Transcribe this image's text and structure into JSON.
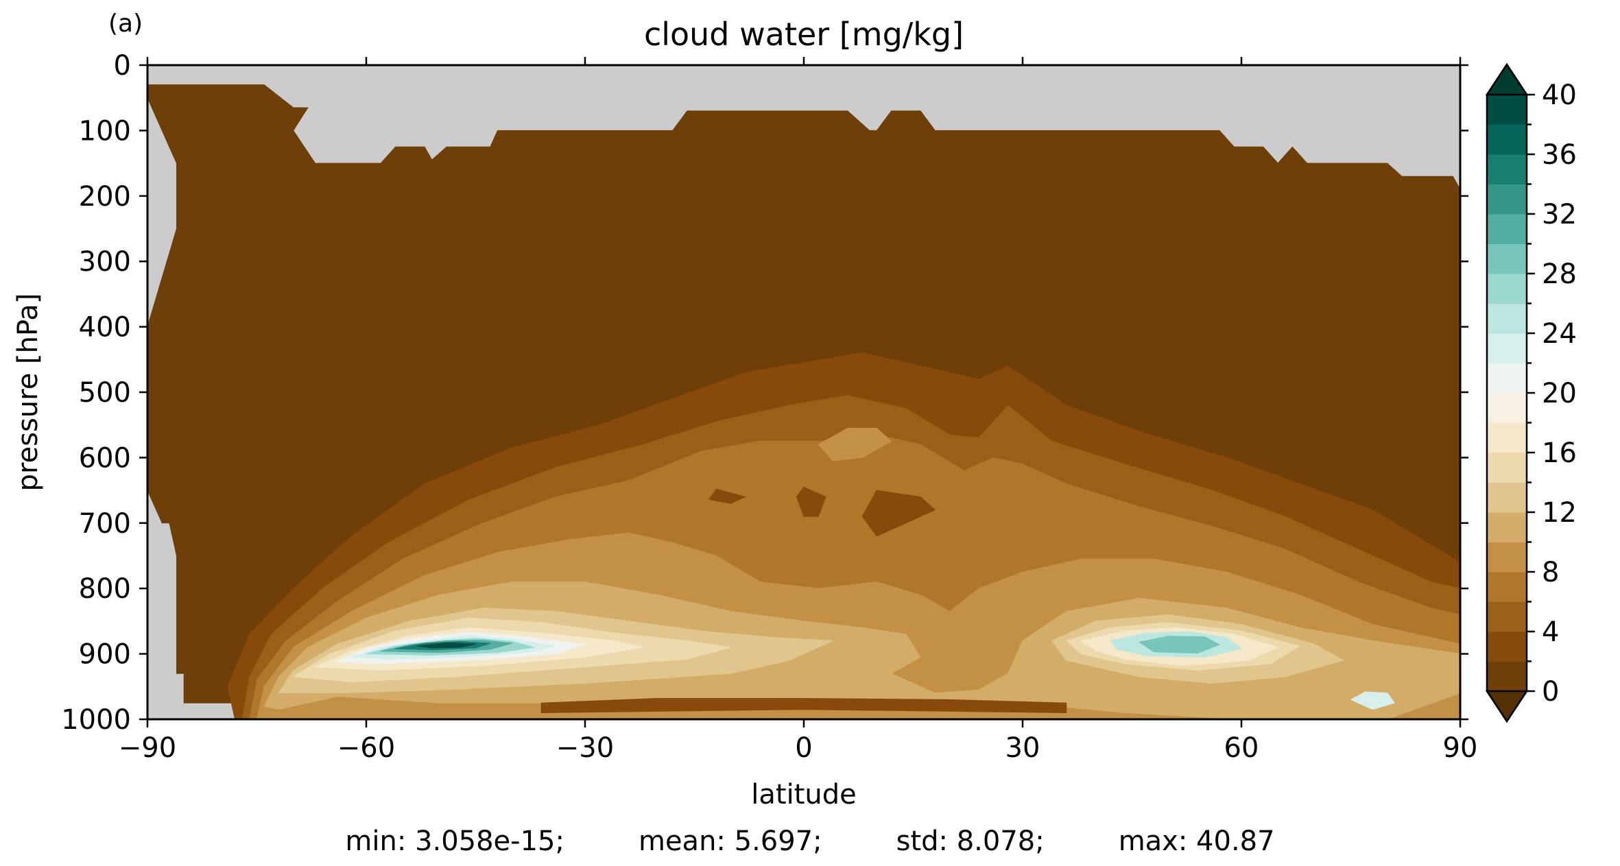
{
  "panel_label": "(a)",
  "chart_data": {
    "type": "heatmap",
    "title": "cloud water [mg/kg]",
    "xlabel": "latitude",
    "ylabel": "pressure [hPa]",
    "xlim": [
      -90,
      90
    ],
    "ylim": [
      1000,
      0
    ],
    "y_inverted": true,
    "xticks": [
      -90,
      -60,
      -30,
      0,
      30,
      60,
      90
    ],
    "xtick_labels": [
      "−90",
      "−60",
      "−30",
      "0",
      "30",
      "60",
      "90"
    ],
    "yticks": [
      0,
      100,
      200,
      300,
      400,
      500,
      600,
      700,
      800,
      900,
      1000
    ],
    "ytick_labels": [
      "0",
      "100",
      "200",
      "300",
      "400",
      "500",
      "600",
      "700",
      "800",
      "900",
      "1000"
    ],
    "missing_color": "#cccccc",
    "colorbar": {
      "levels": [
        0,
        2,
        4,
        6,
        8,
        10,
        12,
        14,
        16,
        18,
        20,
        22,
        24,
        26,
        28,
        30,
        32,
        34,
        36,
        38,
        40
      ],
      "tick_values": [
        0,
        4,
        8,
        12,
        16,
        20,
        24,
        28,
        32,
        36,
        40
      ],
      "tick_labels": [
        "0",
        "4",
        "8",
        "12",
        "16",
        "20",
        "24",
        "28",
        "32",
        "36",
        "40"
      ],
      "extend": "both",
      "colors": [
        "#6f3f09",
        "#884a0b",
        "#9c5f18",
        "#b0772a",
        "#c39146",
        "#d3ac68",
        "#e0c68d",
        "#ecd9ac",
        "#f4e8c8",
        "#f5f0e2",
        "#eef3f2",
        "#d7efeb",
        "#bce6e0",
        "#9ad8cf",
        "#78c6b9",
        "#54ada1",
        "#359589",
        "#1a7d72",
        "#06655a",
        "#004d42"
      ],
      "under_color": "#543005",
      "over_color": "#003c30"
    },
    "regions": [
      {
        "level": 1,
        "approx_min_value": 0,
        "description_lat_range": [
          -90,
          90
        ],
        "top_hPa": 30
      },
      {
        "level": 2,
        "lat_range": [
          -70,
          90
        ],
        "top_hPa": 440
      },
      {
        "level": 4,
        "lat_range": [
          -63,
          90
        ],
        "top_hPa": 500
      },
      {
        "level": 6,
        "lat_range": [
          -58,
          88
        ],
        "top_hPa": 560
      },
      {
        "level": 10,
        "lat_range": [
          -72,
          85
        ],
        "top_hPa": 700
      },
      {
        "level": 16,
        "lat_range": [
          -67,
          82
        ],
        "top_hPa": 760
      },
      {
        "level": 20,
        "center": [
          -47,
          880
        ],
        "peak": 40.87
      },
      {
        "level": 26,
        "center": [
          50,
          885
        ],
        "peak": 34
      }
    ],
    "stats": {
      "min": "min: 3.058e-15;",
      "mean": "mean: 5.697;",
      "std": "std: 8.078;",
      "max": "max: 40.87"
    }
  }
}
